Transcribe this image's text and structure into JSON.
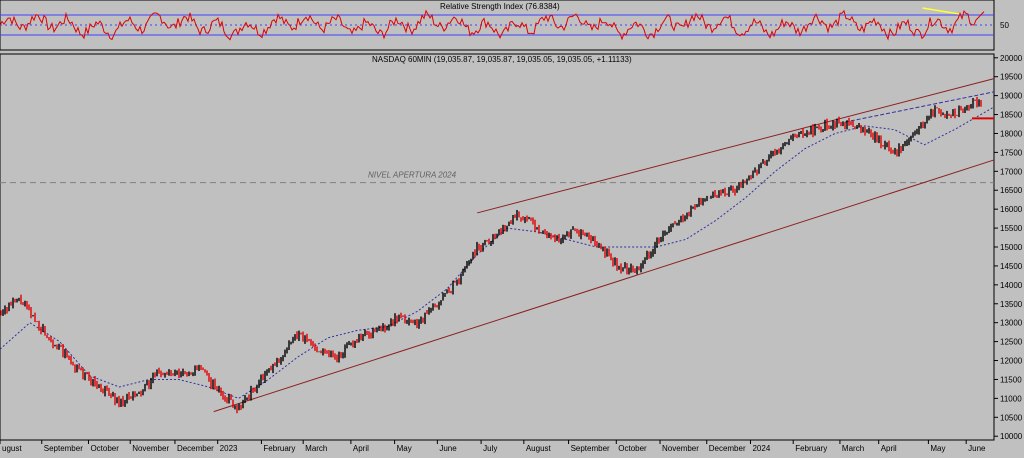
{
  "colors": {
    "background": "#c0c0c0",
    "rsi_line": "#e00000",
    "rsi_band_upper": "#4040ff",
    "rsi_band_lower": "#4040ff",
    "price_candle": "#000000",
    "price_candle_down": "#e00000",
    "moving_average": "#3030a0",
    "channel": "#8b2020",
    "open_level": "#808080",
    "annotation_yellow": "#ffff33",
    "last_marker": "#e00000"
  },
  "chart_data": [
    {
      "type": "line",
      "title": "Relative Strength Index (76.8384)",
      "y_ticks": [
        "50"
      ],
      "ylim": [
        0,
        100
      ],
      "bands": [
        70,
        30
      ],
      "midline": 50,
      "last_value": 76.8384,
      "divergence_note": {
        "from": [
          0.928,
          84
        ],
        "to": [
          0.965,
          72
        ]
      }
    },
    {
      "type": "line",
      "title": "NASDAQ 60MIN (19,035.87, 19,035.87, 19,035.05, 19,035.05, +1.11133)",
      "y_ticks": [
        "20000",
        "19500",
        "19000",
        "18500",
        "18000",
        "17500",
        "17000",
        "16500",
        "16000",
        "15500",
        "15000",
        "14500",
        "14000",
        "13500",
        "13000",
        "12500",
        "12000",
        "11500",
        "11000",
        "10500",
        "10000"
      ],
      "ylim": [
        9900,
        20100
      ],
      "x_labels": [
        "ugust",
        "September",
        "October",
        "November",
        "December",
        "2023",
        "February",
        "March",
        "April",
        "May",
        "June",
        "July",
        "August",
        "September",
        "October",
        "November",
        "December",
        "2024",
        "February",
        "March",
        "April",
        "May",
        "June"
      ],
      "series": [
        {
          "x": [
            0,
            0.02,
            0.04,
            0.06,
            0.08,
            0.1,
            0.12,
            0.14,
            0.16,
            0.18,
            0.2,
            0.22,
            0.24,
            0.26,
            0.28,
            0.3,
            0.32,
            0.34,
            0.36,
            0.38,
            0.4,
            0.42,
            0.44,
            0.46,
            0.48,
            0.5,
            0.52,
            0.54,
            0.56,
            0.58,
            0.6,
            0.62,
            0.64,
            0.66,
            0.68,
            0.7,
            0.72,
            0.74,
            0.76,
            0.78,
            0.8,
            0.82,
            0.84,
            0.86,
            0.88,
            0.9,
            0.92,
            0.94,
            0.96,
            0.98,
            1.0
          ],
          "values": [
            13300,
            13600,
            12900,
            12300,
            11700,
            11300,
            10900,
            11100,
            11700,
            11600,
            11800,
            11200,
            10750,
            11400,
            12000,
            12700,
            12300,
            12100,
            12600,
            12800,
            13100,
            13000,
            13500,
            14100,
            15000,
            15300,
            15900,
            15500,
            15200,
            15400,
            15100,
            14500,
            14400,
            15100,
            15600,
            16100,
            16400,
            16500,
            17000,
            17500,
            17900,
            18100,
            18300,
            18200,
            17900,
            17500,
            18000,
            18600,
            18500,
            18800,
            19035
          ]
        },
        {
          "x": [
            0,
            0.03,
            0.06,
            0.09,
            0.12,
            0.15,
            0.18,
            0.21,
            0.24,
            0.27,
            0.3,
            0.33,
            0.36,
            0.39,
            0.42,
            0.45,
            0.48,
            0.51,
            0.54,
            0.57,
            0.6,
            0.63,
            0.66,
            0.69,
            0.72,
            0.75,
            0.78,
            0.81,
            0.84,
            0.87,
            0.9,
            0.93,
            0.96,
            1.0
          ],
          "values": [
            12300,
            13000,
            12500,
            11600,
            11300,
            11500,
            11500,
            11300,
            11000,
            11500,
            12100,
            12600,
            12800,
            12900,
            13300,
            13900,
            14800,
            15500,
            15400,
            15200,
            15000,
            15000,
            15000,
            15200,
            15700,
            16300,
            17000,
            17600,
            18000,
            18200,
            18100,
            17700,
            18100,
            18700
          ]
        }
      ],
      "channel_upper": {
        "from": [
          0.48,
          15900
        ],
        "to": [
          1.0,
          19450
        ]
      },
      "channel_lower": {
        "from": [
          0.215,
          10650
        ],
        "to": [
          1.0,
          17300
        ]
      },
      "ma_extension": {
        "from": [
          0.85,
          18300
        ],
        "to": [
          1.0,
          19100
        ]
      },
      "level_line": {
        "value": 16700,
        "label": "NIVEL APERTURA 2024"
      },
      "last_price": 19035.05,
      "last_marker_value": 18400
    }
  ]
}
